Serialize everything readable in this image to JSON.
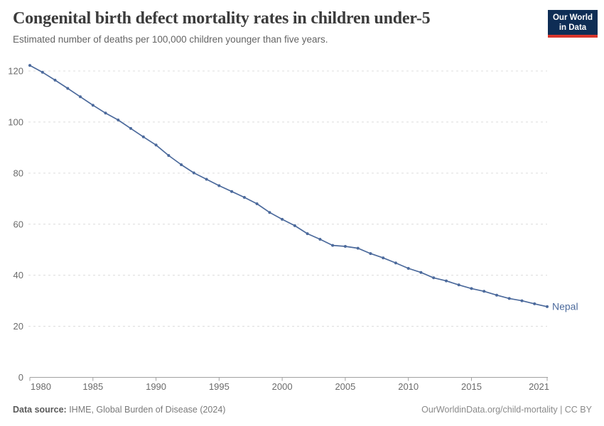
{
  "header": {
    "title": "Congenital birth defect mortality rates in children under-5",
    "subtitle": "Estimated number of deaths per 100,000 children younger than five years."
  },
  "logo": {
    "line1": "Our World",
    "line2": "in Data",
    "bg_color": "#0e2d55",
    "bar_color": "#d8352c"
  },
  "chart_data": {
    "type": "line",
    "title": "Congenital birth defect mortality rates in children under-5",
    "subtitle": "Estimated number of deaths per 100,000 children younger than five years.",
    "xlabel": "",
    "ylabel": "",
    "xlim": [
      1980,
      2021
    ],
    "ylim": [
      0,
      125
    ],
    "x_ticks": [
      1980,
      1985,
      1990,
      1995,
      2000,
      2005,
      2010,
      2015,
      2021
    ],
    "y_ticks": [
      0,
      20,
      40,
      60,
      80,
      100,
      120
    ],
    "grid": "horizontal-dashed",
    "legend_position": "end-of-line label",
    "series": [
      {
        "name": "Nepal",
        "color": "#4c6a9c",
        "x": [
          1980,
          1981,
          1982,
          1983,
          1984,
          1985,
          1986,
          1987,
          1988,
          1989,
          1990,
          1991,
          1992,
          1993,
          1994,
          1995,
          1996,
          1997,
          1998,
          1999,
          2000,
          2001,
          2002,
          2003,
          2004,
          2005,
          2006,
          2007,
          2008,
          2009,
          2010,
          2011,
          2012,
          2013,
          2014,
          2015,
          2016,
          2017,
          2018,
          2019,
          2020,
          2021
        ],
        "values": [
          122.2,
          119.5,
          116.4,
          113.2,
          109.9,
          106.6,
          103.5,
          100.8,
          97.5,
          94.2,
          91.0,
          86.9,
          83.3,
          80.1,
          77.6,
          75.1,
          72.8,
          70.5,
          68.0,
          64.6,
          61.9,
          59.4,
          56.3,
          54.1,
          51.7,
          51.3,
          50.6,
          48.5,
          46.8,
          44.8,
          42.7,
          41.1,
          39.0,
          37.8,
          36.2,
          34.8,
          33.7,
          32.2,
          30.9,
          30.0,
          28.8,
          27.7
        ]
      }
    ]
  },
  "footer": {
    "source_label": "Data source:",
    "source_text": " IHME, Global Burden of Disease (2024)",
    "link_text": "OurWorldinData.org/child-mortality | CC BY"
  }
}
